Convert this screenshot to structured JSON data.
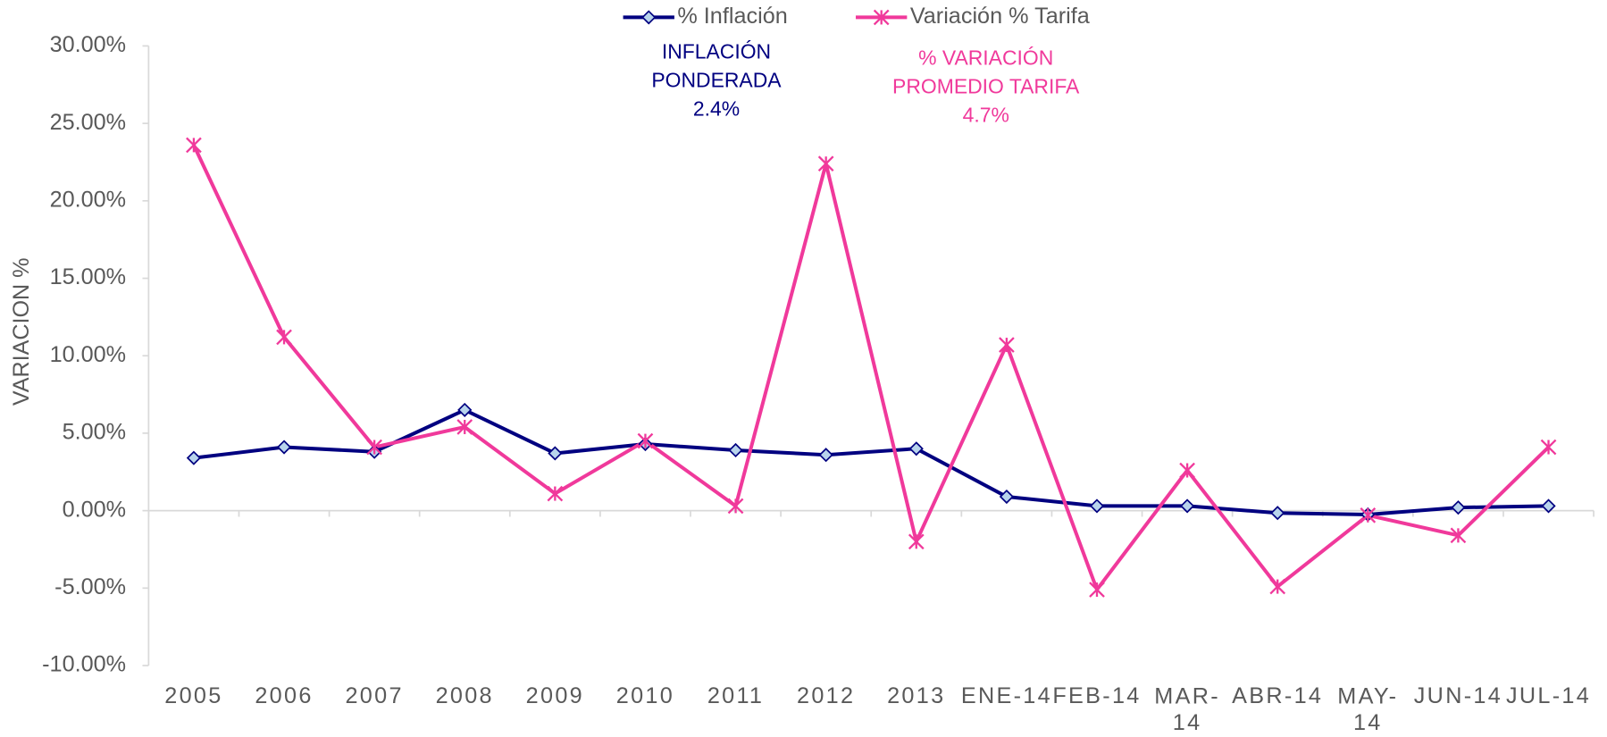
{
  "chart_data": {
    "type": "line",
    "y_axis_label": "VARIACION %",
    "categories": [
      "2005",
      "2006",
      "2007",
      "2008",
      "2009",
      "2010",
      "2011",
      "2012",
      "2013",
      "ENE-14",
      "FEB-14",
      "MAR-14",
      "ABR-14",
      "MAY-14",
      "JUN-14",
      "JUL-14"
    ],
    "series": [
      {
        "name": "% Inflación",
        "color": "#000080",
        "marker_fill": "#b8d4ec",
        "marker": "diamond",
        "values": [
          3.4,
          4.1,
          3.8,
          6.5,
          3.7,
          4.3,
          3.9,
          3.6,
          4.0,
          0.9,
          0.3,
          0.3,
          -0.15,
          -0.25,
          0.2,
          0.3
        ]
      },
      {
        "name": "Variación % Tarifa",
        "color": "#f0399b",
        "marker": "star",
        "values": [
          23.6,
          11.2,
          4.1,
          5.4,
          1.1,
          4.5,
          0.3,
          22.4,
          -2.0,
          10.7,
          -5.1,
          2.6,
          -4.9,
          -0.3,
          -1.6,
          4.1
        ]
      }
    ],
    "ylim": [
      -10,
      30
    ],
    "yticks": [
      {
        "value": -10,
        "label": "-10.00%"
      },
      {
        "value": -5,
        "label": "-5.00%"
      },
      {
        "value": 0,
        "label": "0.00%"
      },
      {
        "value": 5,
        "label": "5.00%"
      },
      {
        "value": 10,
        "label": "10.00%"
      },
      {
        "value": 15,
        "label": "15.00%"
      },
      {
        "value": 20,
        "label": "20.00%"
      },
      {
        "value": 25,
        "label": "25.00%"
      },
      {
        "value": 30,
        "label": "30.00%"
      }
    ],
    "legend": "top",
    "annotations": [
      {
        "lines": [
          "INFLACIÓN",
          "PONDERADA",
          "2.4%"
        ],
        "color": "#000080"
      },
      {
        "lines": [
          "% VARIACIÓN",
          "PROMEDIO TARIFA",
          "4.7%"
        ],
        "color": "#f0399b"
      }
    ]
  }
}
